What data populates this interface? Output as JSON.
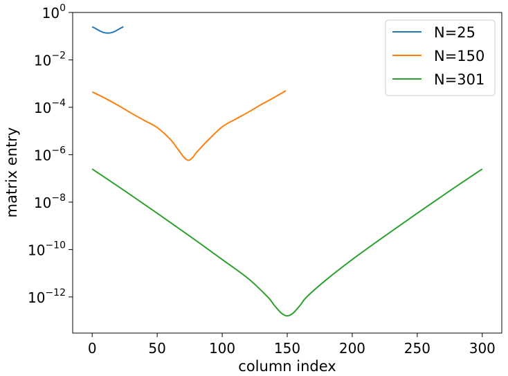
{
  "chart_data": {
    "type": "line",
    "title": "",
    "xlabel": "column index",
    "ylabel": "matrix entry",
    "xlim": [
      -15,
      315
    ],
    "ylim": [
      3e-14,
      1
    ],
    "yscale": "log",
    "grid": false,
    "legend_position": "top-right",
    "x_ticks": [
      {
        "value": 0,
        "label": "0"
      },
      {
        "value": 50,
        "label": "50"
      },
      {
        "value": 100,
        "label": "100"
      },
      {
        "value": 150,
        "label": "150"
      },
      {
        "value": 200,
        "label": "200"
      },
      {
        "value": 250,
        "label": "250"
      },
      {
        "value": 300,
        "label": "300"
      }
    ],
    "y_ticks": [
      {
        "value": 1,
        "base": "10",
        "exp": "0"
      },
      {
        "value": 0.01,
        "base": "10",
        "exp": "−2"
      },
      {
        "value": 0.0001,
        "base": "10",
        "exp": "−4"
      },
      {
        "value": 1e-06,
        "base": "10",
        "exp": "−6"
      },
      {
        "value": 1e-08,
        "base": "10",
        "exp": "−8"
      },
      {
        "value": 1e-10,
        "base": "10",
        "exp": "−10"
      },
      {
        "value": 1e-12,
        "base": "10",
        "exp": "−12"
      }
    ],
    "series": [
      {
        "name": "N=25",
        "color": "#1f77b4",
        "x": [
          0,
          2,
          4,
          6,
          8,
          10,
          12,
          14,
          16,
          18,
          20,
          22,
          24
        ],
        "y": [
          0.25,
          0.22,
          0.19,
          0.165,
          0.148,
          0.138,
          0.135,
          0.138,
          0.148,
          0.165,
          0.19,
          0.22,
          0.25
        ]
      },
      {
        "name": "N=150",
        "color": "#ff7f0e",
        "x": [
          0,
          10,
          20,
          30,
          40,
          50,
          60,
          65,
          70,
          72,
          74,
          76,
          78,
          80,
          85,
          90,
          100,
          110,
          120,
          130,
          140,
          149
        ],
        "y": [
          0.00045,
          0.00024,
          0.00012,
          5.7e-05,
          2.8e-05,
          1.4e-05,
          4.5e-06,
          2e-06,
          8.5e-07,
          6.6e-07,
          5.8e-07,
          6.6e-07,
          8.5e-07,
          1.2e-06,
          2.4e-06,
          4.6e-06,
          1.5e-05,
          3.1e-05,
          6.2e-05,
          0.00013,
          0.00026,
          0.0005
        ]
      },
      {
        "name": "N=301",
        "color": "#2ca02c",
        "x": [
          0,
          25,
          50,
          75,
          100,
          120,
          135,
          140,
          145,
          148,
          150,
          152,
          155,
          160,
          165,
          180,
          200,
          225,
          250,
          275,
          300
        ],
        "y": [
          2.5e-07,
          3e-08,
          3.4e-09,
          3.7e-10,
          3.8e-11,
          6e-12,
          1e-12,
          4.5e-13,
          2.2e-13,
          1.7e-13,
          1.6e-13,
          1.7e-13,
          2.2e-13,
          4.5e-13,
          1e-12,
          5.3e-12,
          3.8e-11,
          3.7e-10,
          3.4e-09,
          3e-08,
          2.5e-07
        ]
      }
    ]
  }
}
